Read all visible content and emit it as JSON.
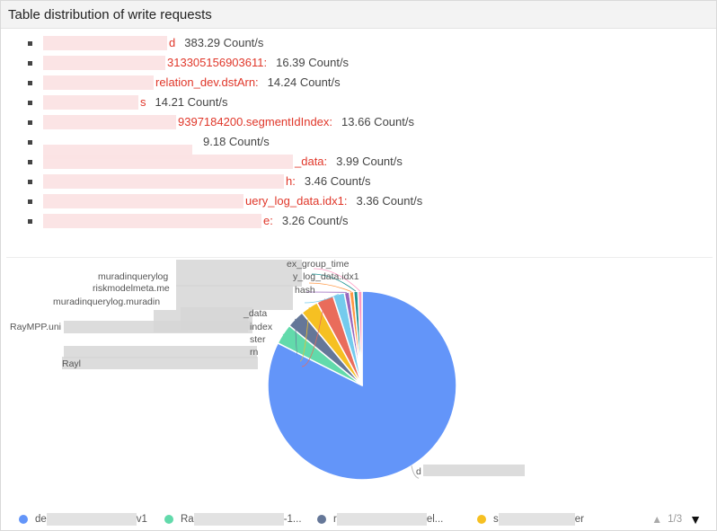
{
  "panel": {
    "title": "Table distribution of write requests"
  },
  "requests": [
    {
      "name": "d",
      "value": "383.29 Count/s"
    },
    {
      "name": "313305156903611:",
      "value": "16.39 Count/s"
    },
    {
      "name": "relation_dev.dstArn:",
      "value": "14.24 Count/s"
    },
    {
      "name": "s",
      "value": "14.21 Count/s"
    },
    {
      "name": "9397184200.segmentIdIndex:",
      "value": "13.66 Count/s"
    },
    {
      "name": "",
      "value": "9.18 Count/s"
    },
    {
      "name": "_data:",
      "value": "3.99 Count/s"
    },
    {
      "name": "h:",
      "value": "3.46 Count/s"
    },
    {
      "name": "uery_log_data.idx1:",
      "value": "3.36 Count/s"
    },
    {
      "name": "e:",
      "value": "3.26 Count/s"
    }
  ],
  "pie_labels": [
    "ex_group_time",
    "muradinquerylog",
    "y_log_data.idx1",
    "riskmodelmeta.me",
    "hash",
    "muradinquerylog.muradin",
    "RayMPP.uni",
    "index",
    "ster",
    "rn",
    "_data",
    "Rayl"
  ],
  "chart_data": {
    "type": "pie",
    "title": "",
    "slices": [
      {
        "label": "d",
        "value": 383.29,
        "color": "#6395f9"
      },
      {
        "label": "Ra",
        "value": 16.39,
        "color": "#62daab"
      },
      {
        "label": "r",
        "value": 14.24,
        "color": "#657798"
      },
      {
        "label": "s",
        "value": 14.21,
        "color": "#f6c022"
      },
      {
        "label": "",
        "value": 13.66,
        "color": "#e96c5b"
      },
      {
        "label": "",
        "value": 9.18,
        "color": "#74cbed"
      },
      {
        "label": "",
        "value": 3.99,
        "color": "#9967bd"
      },
      {
        "label": "",
        "value": 3.46,
        "color": "#ff9845"
      },
      {
        "label": "",
        "value": 3.36,
        "color": "#1e9493"
      },
      {
        "label": "",
        "value": 3.26,
        "color": "#ff99c3"
      }
    ]
  },
  "legend": {
    "items": [
      {
        "label": "de",
        "suffix": "v1",
        "color": "#6395f9"
      },
      {
        "label": "Ra",
        "suffix": "-1...",
        "color": "#62daab"
      },
      {
        "label": "r",
        "suffix": "el...",
        "color": "#657798"
      },
      {
        "label": "s",
        "suffix": "er",
        "color": "#f6c022"
      }
    ],
    "page": "1/3"
  }
}
